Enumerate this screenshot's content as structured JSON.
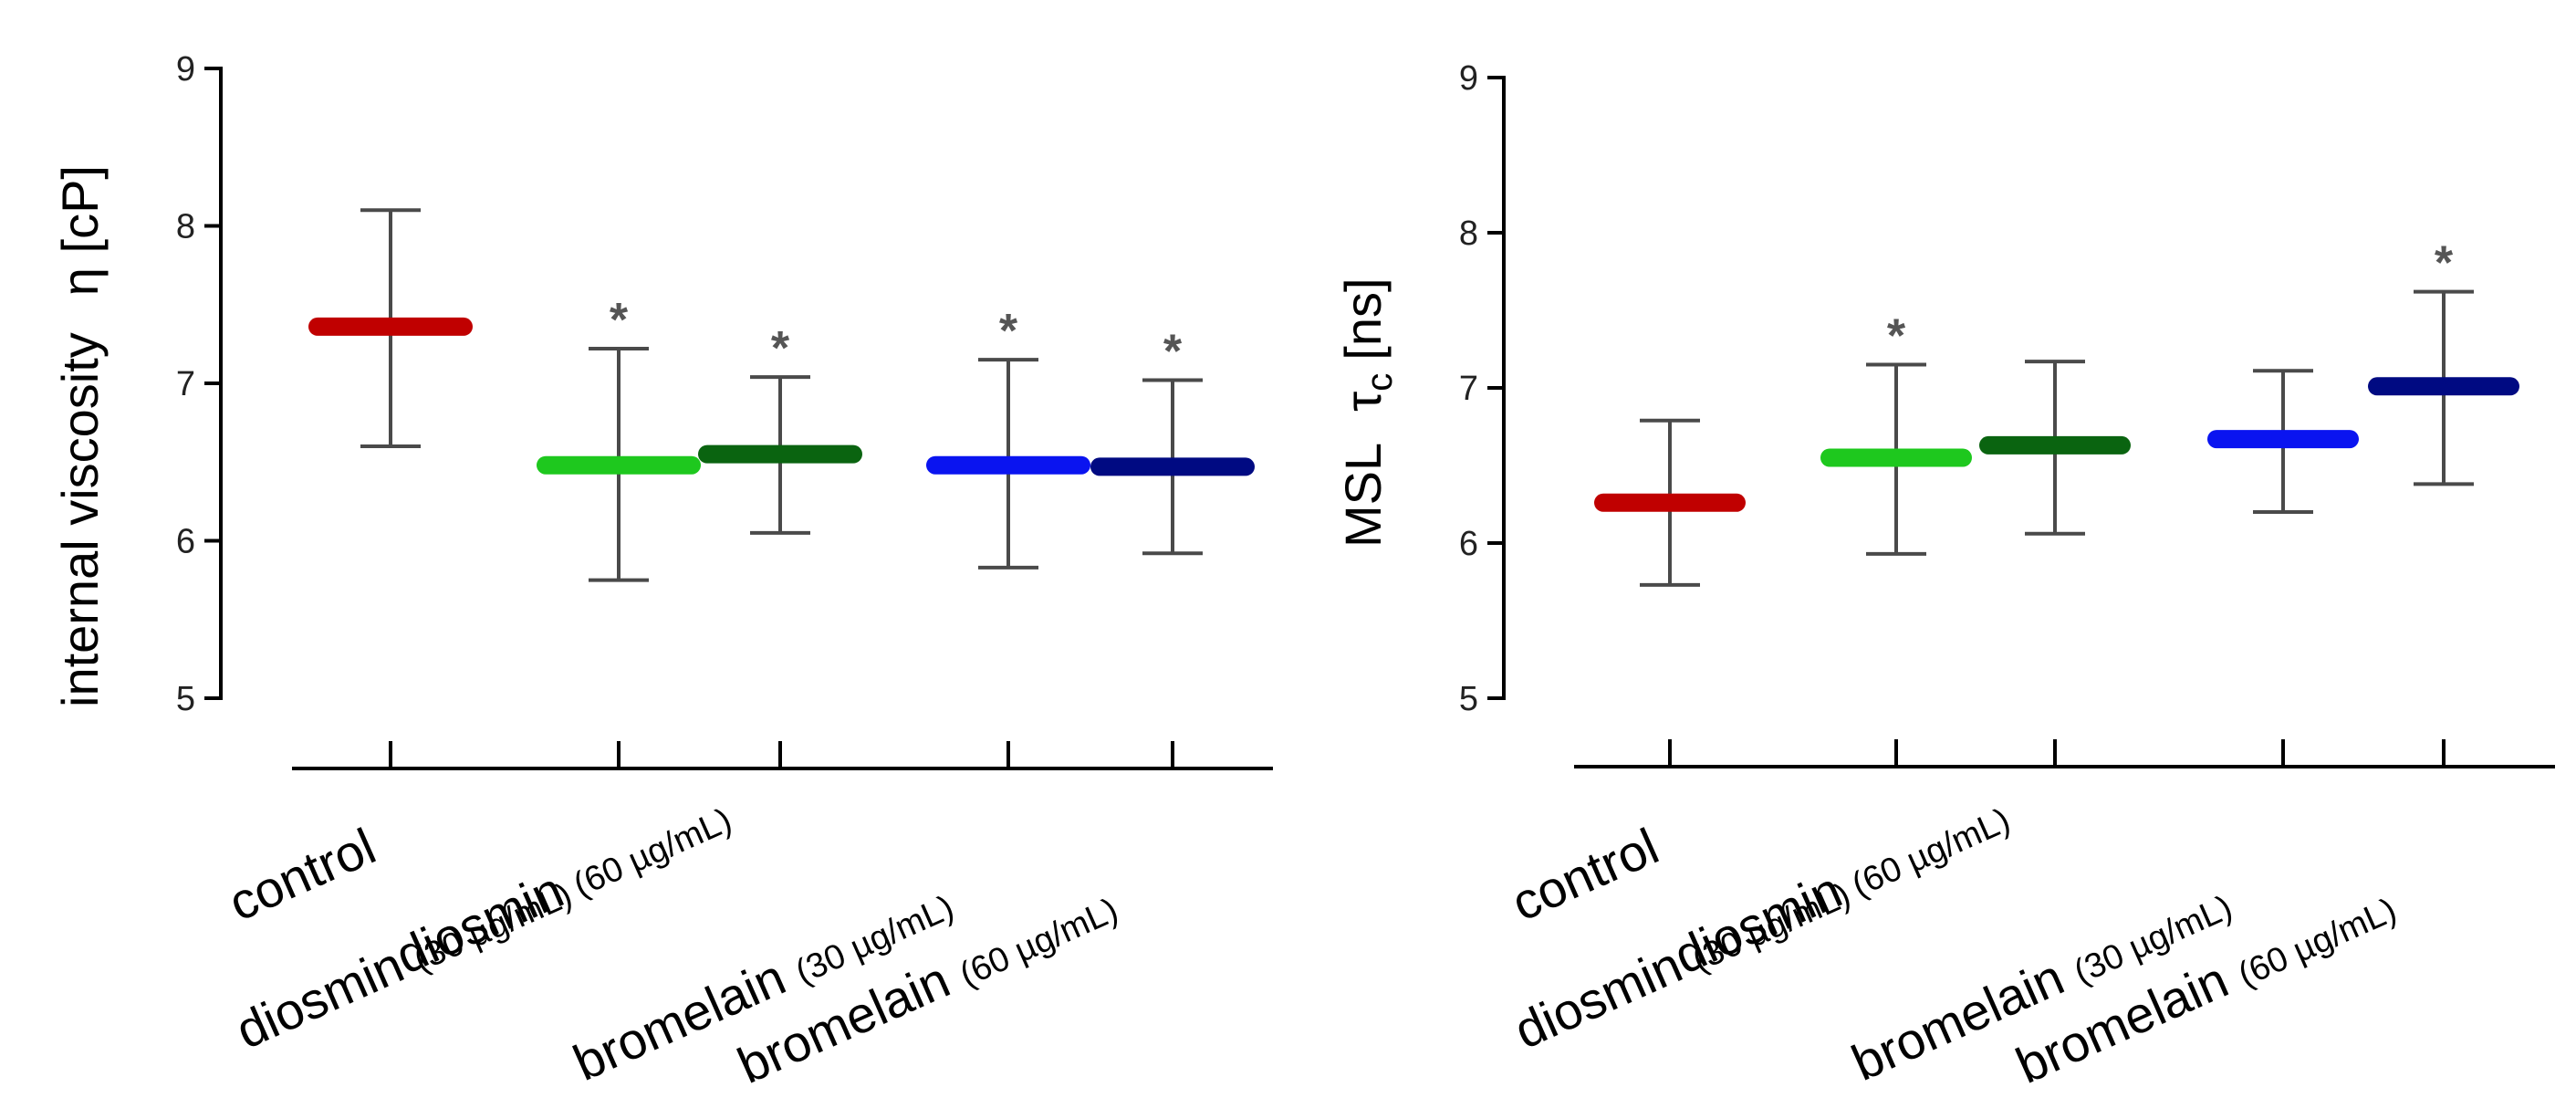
{
  "chart_data": [
    {
      "type": "scatter",
      "ylabel": "internal viscosity   η [cP]",
      "ylabel_parts": [
        "internal viscosity",
        "η [cP]"
      ],
      "ylim": [
        5,
        9
      ],
      "yticks": [
        "5",
        "6",
        "7",
        "8",
        "9"
      ],
      "grid": false,
      "categories": [
        {
          "main": "control",
          "sub": ""
        },
        {
          "main": "diosmin",
          "sub": "(30 µg/mL)"
        },
        {
          "main": "diosmin",
          "sub": "(60 µg/mL)"
        },
        {
          "main": "bromelain",
          "sub": "(30 µg/mL)"
        },
        {
          "main": "bromelain",
          "sub": "(60 µg/mL)"
        }
      ],
      "points": [
        {
          "mean": 7.36,
          "low": 6.6,
          "high": 8.1,
          "color": "#c00000",
          "marker": ""
        },
        {
          "mean": 6.48,
          "low": 5.75,
          "high": 7.22,
          "color": "#1ec81e",
          "marker": "*"
        },
        {
          "mean": 6.55,
          "low": 6.05,
          "high": 7.04,
          "color": "#0a6410",
          "marker": "*"
        },
        {
          "mean": 6.48,
          "low": 5.83,
          "high": 7.15,
          "color": "#0a14f0",
          "marker": "*"
        },
        {
          "mean": 6.47,
          "low": 5.92,
          "high": 7.02,
          "color": "#000a82",
          "marker": "*"
        }
      ]
    },
    {
      "type": "scatter",
      "ylabel": "MSL  τc [ns]",
      "ylabel_parts": [
        "MSL",
        "τ",
        "c",
        "[ns]"
      ],
      "ylim": [
        5,
        9
      ],
      "yticks": [
        "5",
        "6",
        "7",
        "8",
        "9"
      ],
      "grid": false,
      "categories": [
        {
          "main": "control",
          "sub": ""
        },
        {
          "main": "diosmin",
          "sub": "(30 µg/mL)"
        },
        {
          "main": "diosmin",
          "sub": "(60 µg/mL)"
        },
        {
          "main": "bromelain",
          "sub": "(30 µg/mL)"
        },
        {
          "main": "bromelain",
          "sub": "(60 µg/mL)"
        }
      ],
      "points": [
        {
          "mean": 6.26,
          "low": 5.73,
          "high": 6.79,
          "color": "#c00000",
          "marker": ""
        },
        {
          "mean": 6.55,
          "low": 5.93,
          "high": 7.15,
          "color": "#1ec81e",
          "marker": "*"
        },
        {
          "mean": 6.63,
          "low": 6.06,
          "high": 7.17,
          "color": "#0a6410",
          "marker": ""
        },
        {
          "mean": 6.67,
          "low": 6.2,
          "high": 7.11,
          "color": "#0a14f0",
          "marker": ""
        },
        {
          "mean": 7.01,
          "low": 6.38,
          "high": 7.62,
          "color": "#000a82",
          "marker": "*"
        }
      ]
    }
  ]
}
